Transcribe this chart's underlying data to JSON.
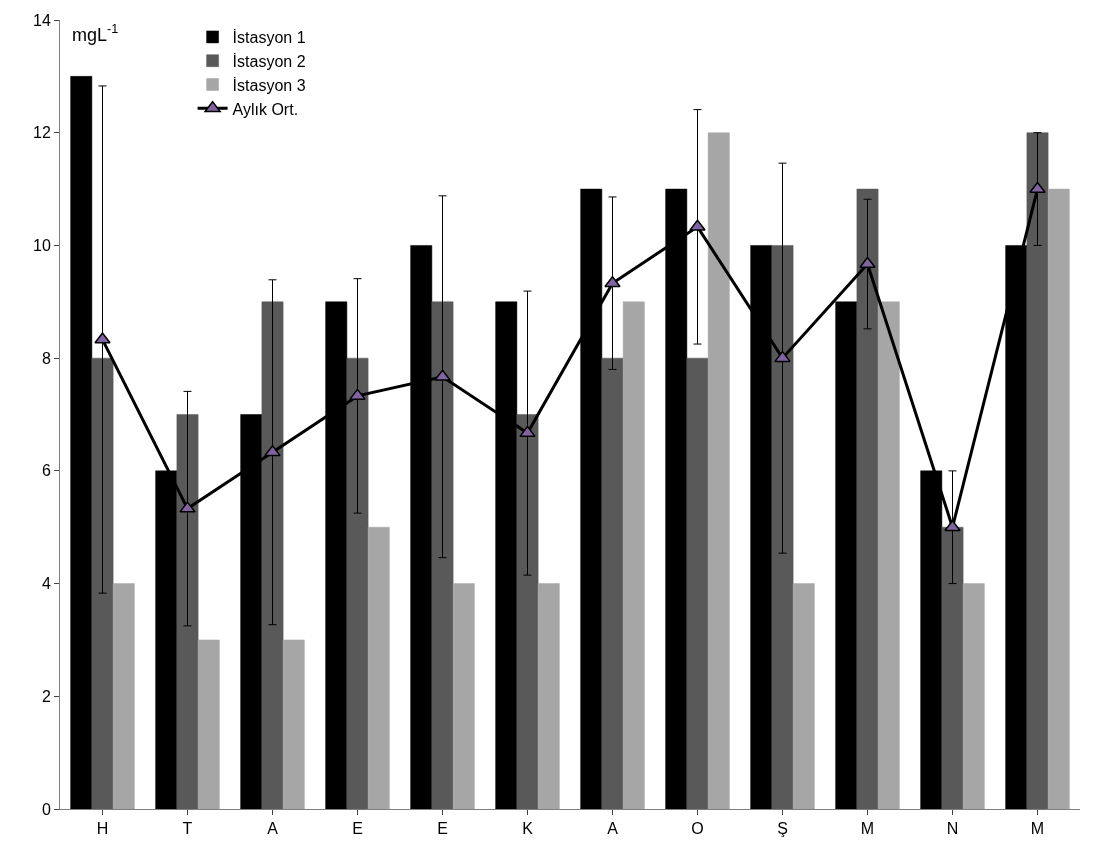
{
  "chart_data": {
    "type": "bar",
    "ylabel": "mgL$^{-1}$",
    "categories": [
      "H",
      "T",
      "A",
      "E",
      "E",
      "K",
      "A",
      "O",
      "Ş",
      "M",
      "N",
      "M"
    ],
    "series": [
      {
        "name": "İstasyon 1",
        "color": "#000000",
        "values": [
          13,
          6,
          7,
          9,
          10,
          9,
          11,
          11,
          10,
          9,
          6,
          10
        ]
      },
      {
        "name": "İstasyon 2",
        "color": "#595959",
        "values": [
          8,
          7,
          9,
          8,
          9,
          7,
          8,
          8,
          10,
          11,
          5,
          12
        ]
      },
      {
        "name": "İstasyon 3",
        "color": "#a6a6a6",
        "values": [
          4,
          3,
          3,
          5,
          4,
          4,
          9,
          12,
          4,
          9,
          4,
          11
        ]
      },
      {
        "name": "Aylık Ort.",
        "type": "line",
        "color": "#000000",
        "values": [
          8.33,
          5.33,
          6.33,
          7.33,
          7.67,
          6.67,
          9.33,
          10.33,
          8,
          9.67,
          5,
          11
        ],
        "errors": [
          4.5,
          2.08,
          3.06,
          2.08,
          3.21,
          2.52,
          1.53,
          2.08,
          3.46,
          1.15,
          1,
          1
        ]
      }
    ],
    "ylim": [
      0,
      14
    ],
    "yticks": [
      0,
      2,
      4,
      6,
      8,
      10,
      12,
      14
    ],
    "legend": "top left",
    "marker": "triangle"
  }
}
